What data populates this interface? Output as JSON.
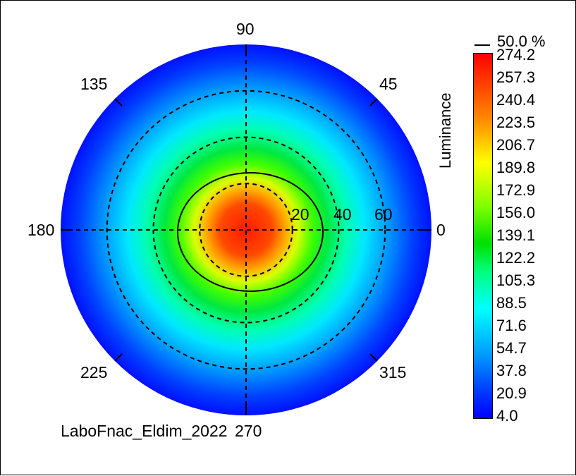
{
  "chart_data": {
    "type": "polar-contour",
    "colorbar": {
      "label": "Luminance",
      "ticks": [
        "274.2",
        "257.3",
        "240.4",
        "223.5",
        "206.7",
        "189.8",
        "172.9",
        "156.0",
        "139.1",
        "122.2",
        "105.3",
        "88.5",
        "71.6",
        "54.7",
        "37.8",
        "20.9",
        "4.0"
      ],
      "min": 4.0,
      "max": 274.2,
      "colors": [
        "#ff0000",
        "#ff8a00",
        "#ffff00",
        "#7fff00",
        "#00e000",
        "#00ff80",
        "#00ffff",
        "#00a0ff",
        "#0040ff",
        "#0000ff"
      ]
    },
    "contour_legend": "50.0 %",
    "angle_labels": [
      "0",
      "45",
      "90",
      "135",
      "180",
      "225",
      "270",
      "315"
    ],
    "radial_labels": [
      "20",
      "40",
      "60"
    ],
    "radial_max": 80,
    "grid": true,
    "peak_luminance": 274.2
  },
  "caption": "LaboFnac_Eldim_2022"
}
